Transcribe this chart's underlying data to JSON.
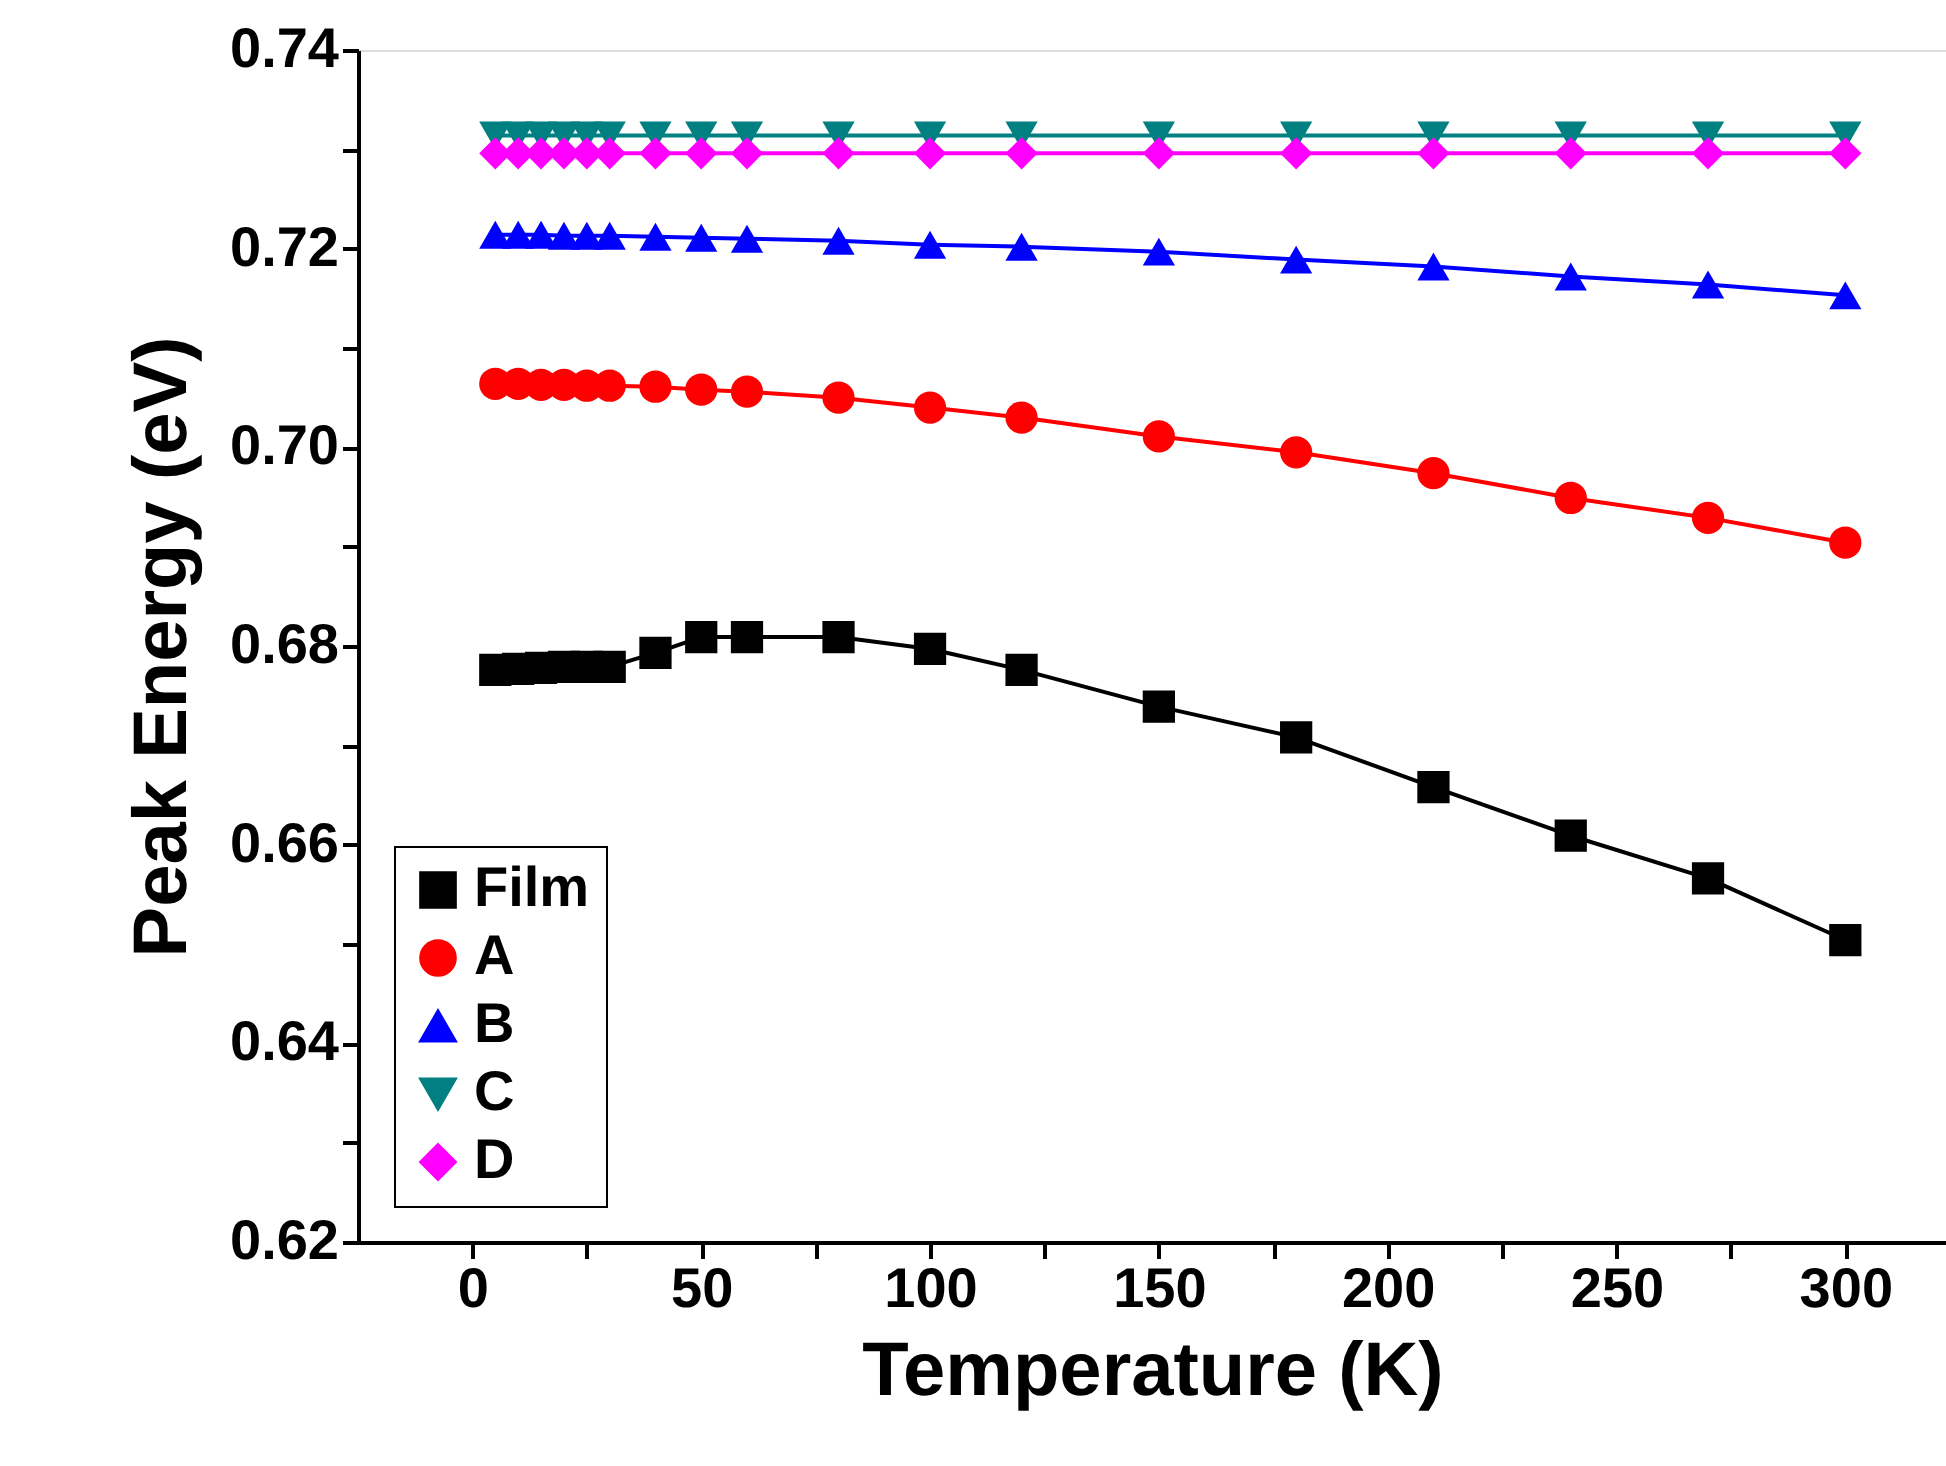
{
  "chart_data": {
    "type": "line",
    "xlabel": "Temperature (K)",
    "ylabel": "Peak Energy (eV)",
    "x": [
      5,
      10,
      15,
      20,
      25,
      30,
      40,
      50,
      60,
      80,
      100,
      120,
      150,
      180,
      210,
      240,
      270,
      300
    ],
    "xlim": [
      -25,
      322
    ],
    "ylim": [
      0.62,
      0.74
    ],
    "xticks": [
      0,
      {
        "value": 25,
        "label": null
      },
      50,
      {
        "value": 75,
        "label": null
      },
      100,
      {
        "value": 125,
        "label": null
      },
      150,
      {
        "value": 175,
        "label": null
      },
      200,
      {
        "value": 225,
        "label": null
      },
      250,
      {
        "value": 275,
        "label": null
      },
      300
    ],
    "yticks": [
      {
        "value": 0.62,
        "label": "0.62"
      },
      {
        "value": 0.63,
        "label": null
      },
      {
        "value": 0.64,
        "label": "0.64"
      },
      {
        "value": 0.65,
        "label": null
      },
      {
        "value": 0.66,
        "label": "0.66"
      },
      {
        "value": 0.67,
        "label": null
      },
      {
        "value": 0.68,
        "label": "0.68"
      },
      {
        "value": 0.69,
        "label": null
      },
      {
        "value": 0.7,
        "label": "0.70"
      },
      {
        "value": 0.71,
        "label": null
      },
      {
        "value": 0.72,
        "label": "0.72"
      },
      {
        "value": 0.73,
        "label": null
      },
      {
        "value": 0.74,
        "label": "0.74"
      }
    ],
    "grid": false,
    "legend": "bottom left",
    "line_style": "solid",
    "series": [
      {
        "name": "Film",
        "color": "#000000",
        "marker": "square",
        "values": [
          0.6776,
          0.6777,
          0.6778,
          0.6779,
          0.6779,
          0.6779,
          0.6793,
          0.6809,
          0.6809,
          0.6809,
          0.6797,
          0.6776,
          0.6739,
          0.6708,
          0.6658,
          0.6609,
          0.6566,
          0.6504
        ]
      },
      {
        "name": "A",
        "color": "#ff0000",
        "marker": "circle",
        "values": [
          0.7064,
          0.7064,
          0.7063,
          0.7063,
          0.7062,
          0.7062,
          0.7061,
          0.7058,
          0.7056,
          0.705,
          0.704,
          0.703,
          0.7011,
          0.6995,
          0.6974,
          0.6949,
          0.6929,
          0.6904
        ]
      },
      {
        "name": "B",
        "color": "#0000ff",
        "marker": "triangle",
        "values": [
          0.7214,
          0.7214,
          0.7214,
          0.7213,
          0.7213,
          0.7213,
          0.7212,
          0.7211,
          0.721,
          0.7208,
          0.7204,
          0.7202,
          0.7197,
          0.7189,
          0.7182,
          0.7172,
          0.7164,
          0.7153
        ]
      },
      {
        "name": "C",
        "color": "#008080",
        "marker": "triangle-down",
        "values": [
          0.7314,
          0.7314,
          0.7314,
          0.7314,
          0.7314,
          0.7314,
          0.7314,
          0.7314,
          0.7314,
          0.7314,
          0.7314,
          0.7314,
          0.7314,
          0.7314,
          0.7314,
          0.7314,
          0.7314,
          0.7314
        ]
      },
      {
        "name": "D",
        "color": "#ff00ff",
        "marker": "diamond",
        "values": [
          0.7296,
          0.7296,
          0.7296,
          0.7296,
          0.7296,
          0.7296,
          0.7296,
          0.7296,
          0.7296,
          0.7296,
          0.7296,
          0.7296,
          0.7296,
          0.7296,
          0.7296,
          0.7296,
          0.7296,
          0.7296
        ]
      }
    ]
  }
}
